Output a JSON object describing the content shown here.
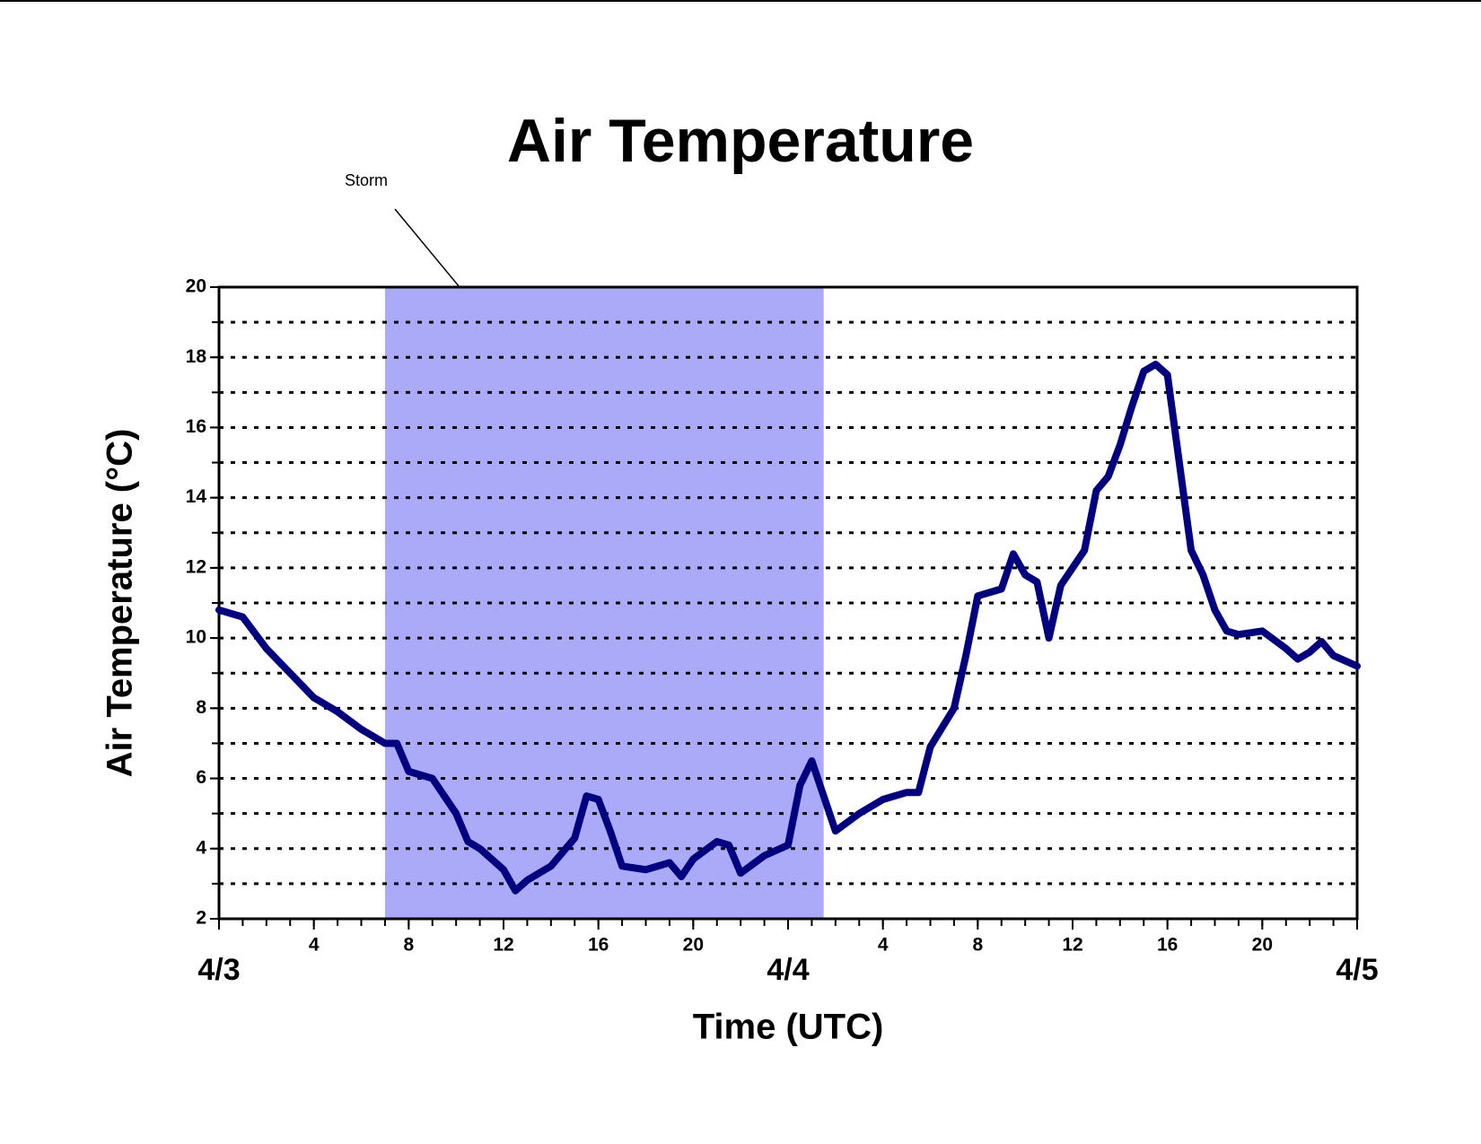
{
  "chart_data": {
    "type": "line",
    "title": "Air Temperature",
    "xlabel": "Time (UTC)",
    "ylabel": "Air Temperature (°C)",
    "annotation": {
      "text": "Storm",
      "span": [
        7,
        25.5
      ],
      "color": "#aaaaf8"
    },
    "xlim": [
      0,
      48
    ],
    "xticks": [
      {
        "value": 0,
        "label": "4/3"
      },
      4,
      8,
      12,
      16,
      20,
      {
        "value": 24,
        "label": "4/4"
      },
      {
        "value": 28,
        "label": "4"
      },
      {
        "value": 32,
        "label": "8"
      },
      {
        "value": 36,
        "label": "12"
      },
      {
        "value": 40,
        "label": "16"
      },
      {
        "value": 44,
        "label": "20"
      },
      {
        "value": 48,
        "label": "4/5"
      }
    ],
    "xminor_step": 1,
    "ylim": [
      2,
      20
    ],
    "yticks": [
      2,
      4,
      6,
      8,
      10,
      12,
      14,
      16,
      18,
      20
    ],
    "yminor_step": 1,
    "grid": true,
    "series": [
      {
        "name": "Air Temperature",
        "color": "#000080",
        "x": [
          0,
          1,
          2,
          3,
          4,
          5,
          6,
          7,
          7.5,
          8,
          9,
          10,
          10.5,
          11,
          12,
          12.5,
          13,
          14,
          15,
          15.5,
          16,
          16.5,
          17,
          18,
          19,
          19.5,
          20,
          21,
          21.5,
          22,
          23,
          24,
          24.5,
          25,
          25.5,
          26,
          27,
          28,
          29,
          29.5,
          30,
          31,
          31.5,
          32,
          33,
          33.5,
          34,
          34.5,
          35,
          35.5,
          36,
          36.5,
          37,
          37.5,
          38,
          38.5,
          39,
          39.5,
          40,
          40.5,
          41,
          41.5,
          42,
          42.5,
          43,
          44,
          45,
          45.5,
          46,
          46.5,
          47,
          48
        ],
        "values": [
          10.8,
          10.6,
          9.7,
          9.0,
          8.3,
          7.9,
          7.4,
          7.0,
          7.0,
          6.2,
          6.0,
          5.0,
          4.2,
          4.0,
          3.4,
          2.8,
          3.1,
          3.5,
          4.3,
          5.5,
          5.4,
          4.5,
          3.5,
          3.4,
          3.6,
          3.2,
          3.7,
          4.2,
          4.1,
          3.3,
          3.8,
          4.1,
          5.8,
          6.5,
          5.5,
          4.5,
          5.0,
          5.4,
          5.6,
          5.6,
          6.9,
          8.0,
          9.5,
          11.2,
          11.4,
          12.4,
          11.8,
          11.6,
          10.0,
          11.5,
          12.0,
          12.5,
          14.2,
          14.6,
          15.5,
          16.6,
          17.6,
          17.8,
          17.5,
          15.0,
          12.5,
          11.8,
          10.8,
          10.2,
          10.1,
          10.2,
          9.7,
          9.4,
          9.6,
          9.9,
          9.5,
          9.2
        ]
      }
    ]
  }
}
